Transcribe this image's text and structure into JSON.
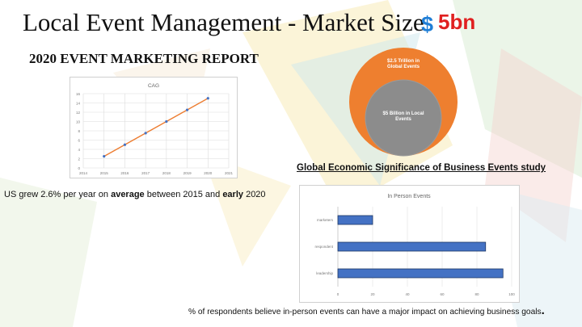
{
  "slide": {
    "title": "Local Event Management - Market Size",
    "dollar": "$",
    "amount": "5bn",
    "subtitle": "2020 EVENT MARKETING REPORT"
  },
  "line_chart_caption": {
    "text_1": "US grew 2.6% per year on ",
    "bold_1": "average",
    "text_2": " between 2015 and ",
    "bold_2": "early",
    "text_3": " 2020"
  },
  "circles": {
    "outer_label": "$2.5 Trillion in Global Events",
    "inner_label": "$5 Billion in Local Events",
    "study_caption": "Global Economic Significance of Business Events study",
    "colors": {
      "outer": "#ee7f2f",
      "inner": "#8c8c8c"
    }
  },
  "footer": {
    "text": "% of respondents believe in-person events can have a major impact on achieving business goals",
    "dot": "."
  },
  "chart_data": [
    {
      "type": "line",
      "title": "CAG",
      "x": [
        2015,
        2016,
        2017,
        2018,
        2019,
        2020
      ],
      "series": [
        {
          "values": [
            2.5,
            5,
            7.5,
            10,
            12.5,
            15
          ]
        }
      ],
      "xticks": [
        "2014",
        "2015",
        "2016",
        "2017",
        "2018",
        "2019",
        "2020",
        "2021"
      ],
      "xlim": [
        2014,
        2021
      ],
      "yticks": [
        "0",
        "2",
        "4",
        "6",
        "8",
        "10",
        "12",
        "14",
        "16"
      ],
      "ylim": [
        0,
        16
      ],
      "grid": true,
      "colors": {
        "line": "#ed7d31",
        "marker": "#4472c4"
      }
    },
    {
      "type": "bar",
      "orientation": "horizontal",
      "title": "In Person Events",
      "categories": [
        "marketers",
        "respondent",
        "leadership"
      ],
      "values": [
        20,
        85,
        95
      ],
      "xticks": [
        "0",
        "20",
        "40",
        "60",
        "80",
        "100"
      ],
      "xlim": [
        0,
        100
      ],
      "grid": true,
      "colors": {
        "bar": "#4472c4",
        "edge": "#1f3864"
      }
    }
  ]
}
